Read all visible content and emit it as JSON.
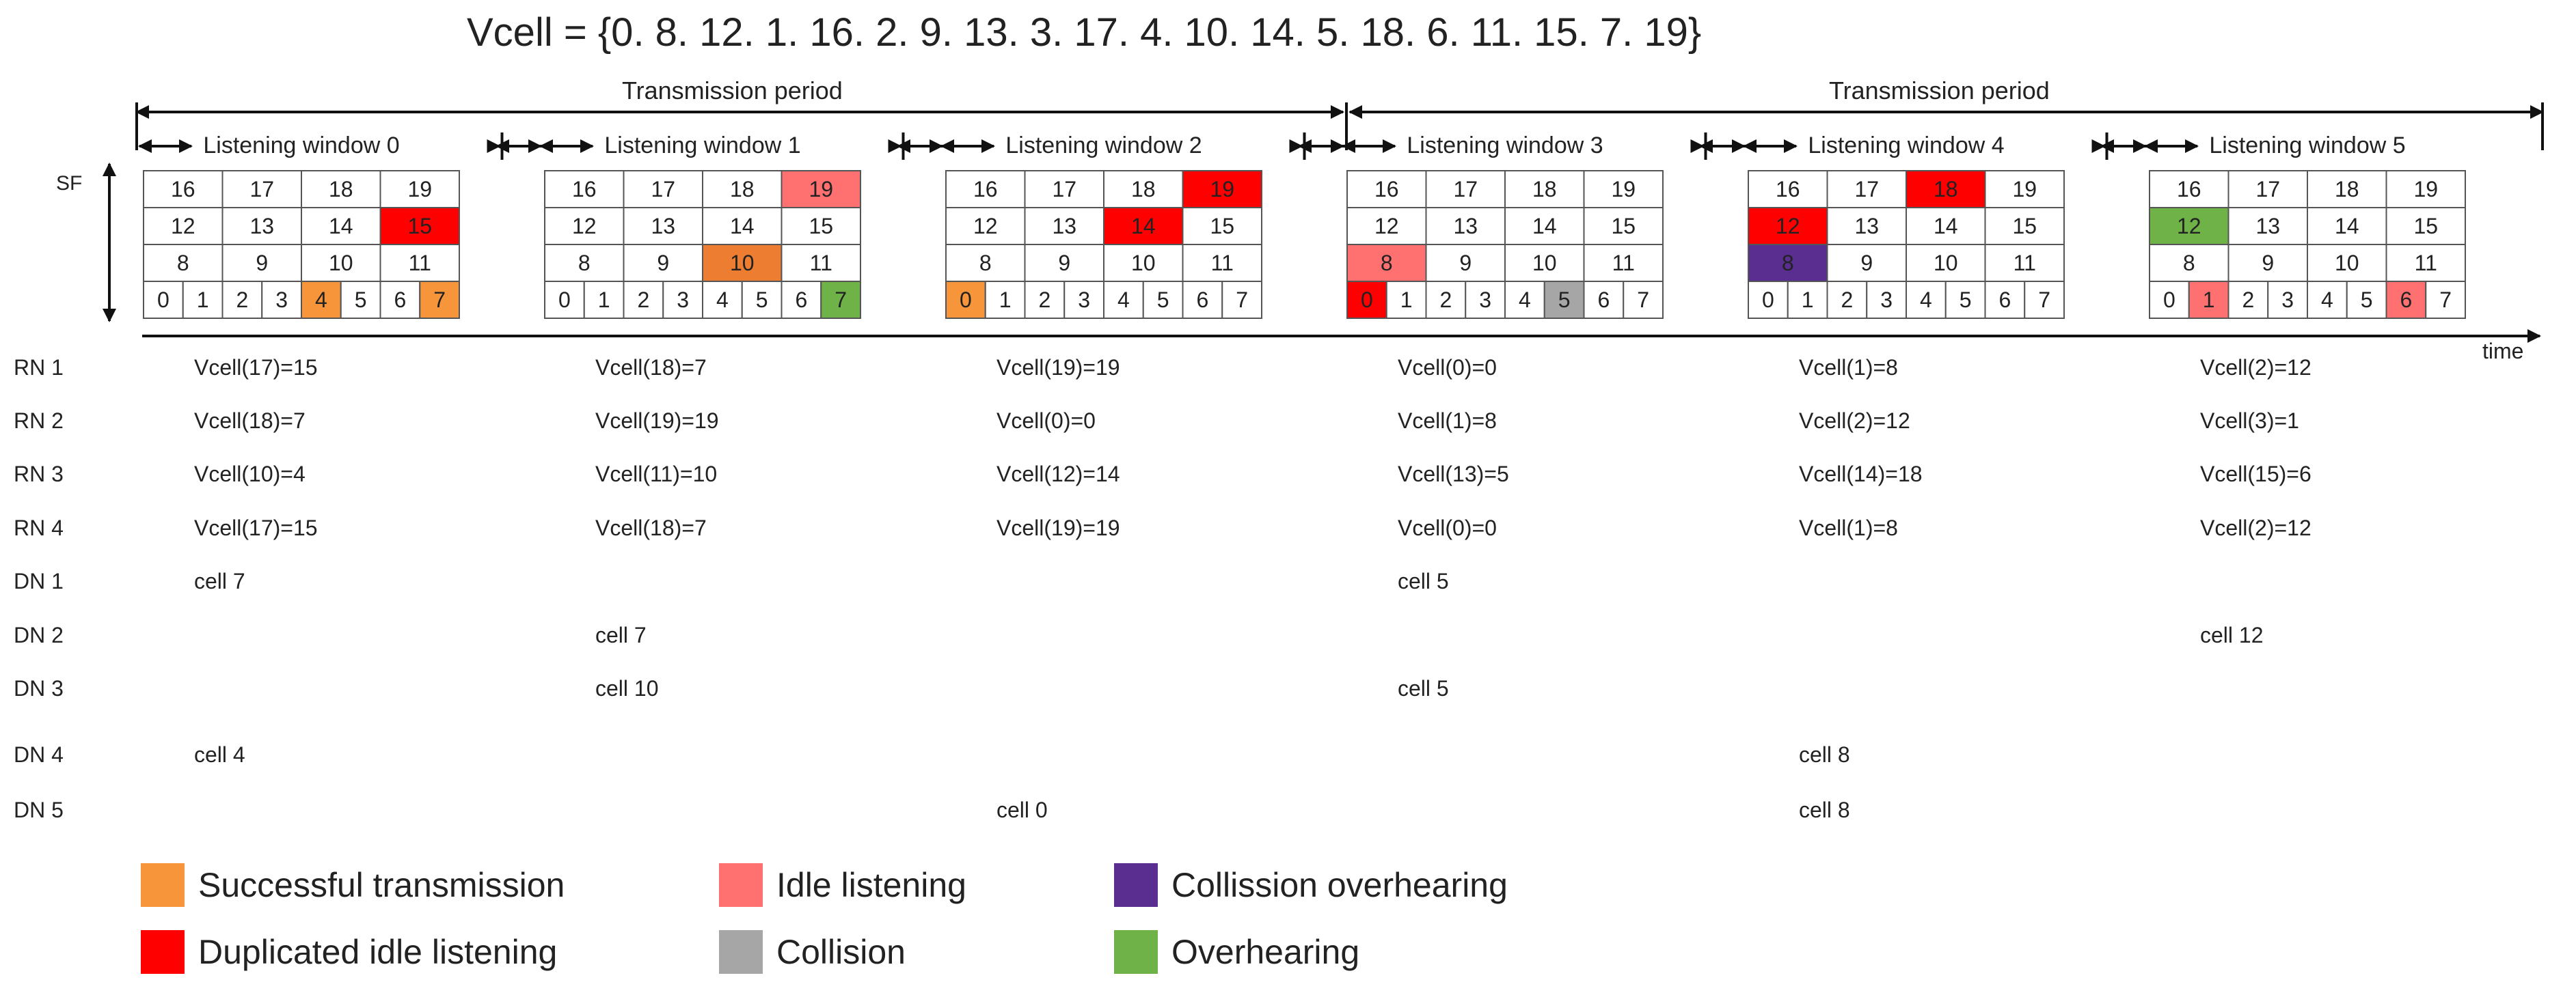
{
  "title": "Vcell = {0. 8. 12. 1. 16. 2. 9. 13. 3. 17. 4. 10. 14. 5. 18. 6. 11. 15. 7. 19}",
  "periods": [
    "Transmission period",
    "Transmission period"
  ],
  "axis": {
    "y_label": "SF",
    "x_label": "time"
  },
  "colors": {
    "successful": "#f7953b",
    "tenOrange": "#ed7d31",
    "idle": "#ff7070",
    "duplicated": "#ff0000",
    "collision": "#a6a6a6",
    "collision_overhearing": "#5a2e91",
    "overhearing": "#6fb248"
  },
  "windows": [
    {
      "label": "Listening window 0",
      "cells": {
        "4": "successful",
        "7": "successful",
        "15": "duplicated"
      }
    },
    {
      "label": "Listening window 1",
      "cells": {
        "7": "overhearing",
        "10": "tenOrange",
        "19": "idle"
      }
    },
    {
      "label": "Listening window 2",
      "cells": {
        "0": "successful",
        "14": "duplicated",
        "19": "duplicated"
      }
    },
    {
      "label": "Listening window 3",
      "cells": {
        "0": "duplicated",
        "5": "collision",
        "8": "idle"
      }
    },
    {
      "label": "Listening window 4",
      "cells": {
        "8": "collision_overhearing",
        "12": "duplicated",
        "18": "duplicated"
      }
    },
    {
      "label": "Listening window 5",
      "cells": {
        "1": "idle",
        "6": "idle",
        "12": "overhearing"
      }
    }
  ],
  "grid_rows": [
    [
      "16",
      "17",
      "18",
      "19"
    ],
    [
      "12",
      "13",
      "14",
      "15"
    ],
    [
      "8",
      "9",
      "10",
      "11"
    ]
  ],
  "grid_bottom": [
    "0",
    "1",
    "2",
    "3",
    "4",
    "5",
    "6",
    "7"
  ],
  "rows": [
    {
      "label": "RN 1",
      "entries": [
        "Vcell(17)=15",
        "Vcell(18)=7",
        "Vcell(19)=19",
        "Vcell(0)=0",
        "Vcell(1)=8",
        "Vcell(2)=12"
      ]
    },
    {
      "label": "RN 2",
      "entries": [
        "Vcell(18)=7",
        "Vcell(19)=19",
        "Vcell(0)=0",
        "Vcell(1)=8",
        "Vcell(2)=12",
        "Vcell(3)=1"
      ]
    },
    {
      "label": "RN 3",
      "entries": [
        "Vcell(10)=4",
        "Vcell(11)=10",
        "Vcell(12)=14",
        "Vcell(13)=5",
        "Vcell(14)=18",
        "Vcell(15)=6"
      ]
    },
    {
      "label": "RN 4",
      "entries": [
        "Vcell(17)=15",
        "Vcell(18)=7",
        "Vcell(19)=19",
        "Vcell(0)=0",
        "Vcell(1)=8",
        "Vcell(2)=12"
      ]
    },
    {
      "label": "DN 1",
      "entries": [
        "cell 7",
        "",
        "",
        "cell 5",
        "",
        ""
      ]
    },
    {
      "label": "DN 2",
      "entries": [
        "",
        "cell 7",
        "",
        "",
        "",
        "cell 12"
      ]
    },
    {
      "label": "DN 3",
      "entries": [
        "",
        "cell 10",
        "",
        "cell 5",
        "",
        ""
      ]
    },
    {
      "label": "DN 4",
      "entries": [
        "cell 4",
        "",
        "",
        "",
        "cell 8",
        ""
      ]
    },
    {
      "label": "DN 5",
      "entries": [
        "",
        "",
        "cell 0",
        "",
        "cell 8",
        ""
      ]
    }
  ],
  "legend": [
    {
      "label": "Successful transmission",
      "color": "#f7953b"
    },
    {
      "label": "Idle listening",
      "color": "#ff7070"
    },
    {
      "label": "Collission overhearing",
      "color": "#5a2e91"
    },
    {
      "label": "Duplicated idle listening",
      "color": "#ff0000"
    },
    {
      "label": "Collision",
      "color": "#a6a6a6"
    },
    {
      "label": "Overhearing",
      "color": "#6fb248"
    }
  ]
}
